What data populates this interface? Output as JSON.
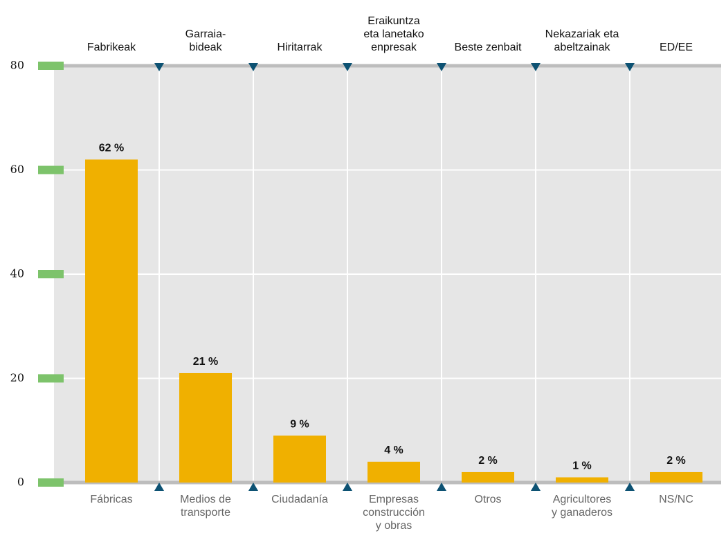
{
  "chart_data": {
    "type": "bar",
    "categories": [
      "Fábricas",
      "Medios de\ntransporte",
      "Ciudadanía",
      "Empresas\nconstrucción\ny obras",
      "Otros",
      "Agricultores\ny ganaderos",
      "NS/NC"
    ],
    "top_categories": [
      "Fabrikeak",
      "Garraia-\nbideak",
      "Hiritarrak",
      "Eraikuntza\neta lanetako\nenpresak",
      "Beste zenbait",
      "Nekazariak eta\nabeltzainak",
      "ED/EE"
    ],
    "values": [
      62,
      21,
      9,
      4,
      2,
      1,
      2
    ],
    "value_labels": [
      "62 %",
      "21 %",
      "9 %",
      "4 %",
      "2 %",
      "1 %",
      "2 %"
    ],
    "color": "#f0b000",
    "ylim": [
      0,
      80
    ],
    "yticks": [
      0,
      20,
      40,
      60,
      80
    ],
    "grid": true
  }
}
